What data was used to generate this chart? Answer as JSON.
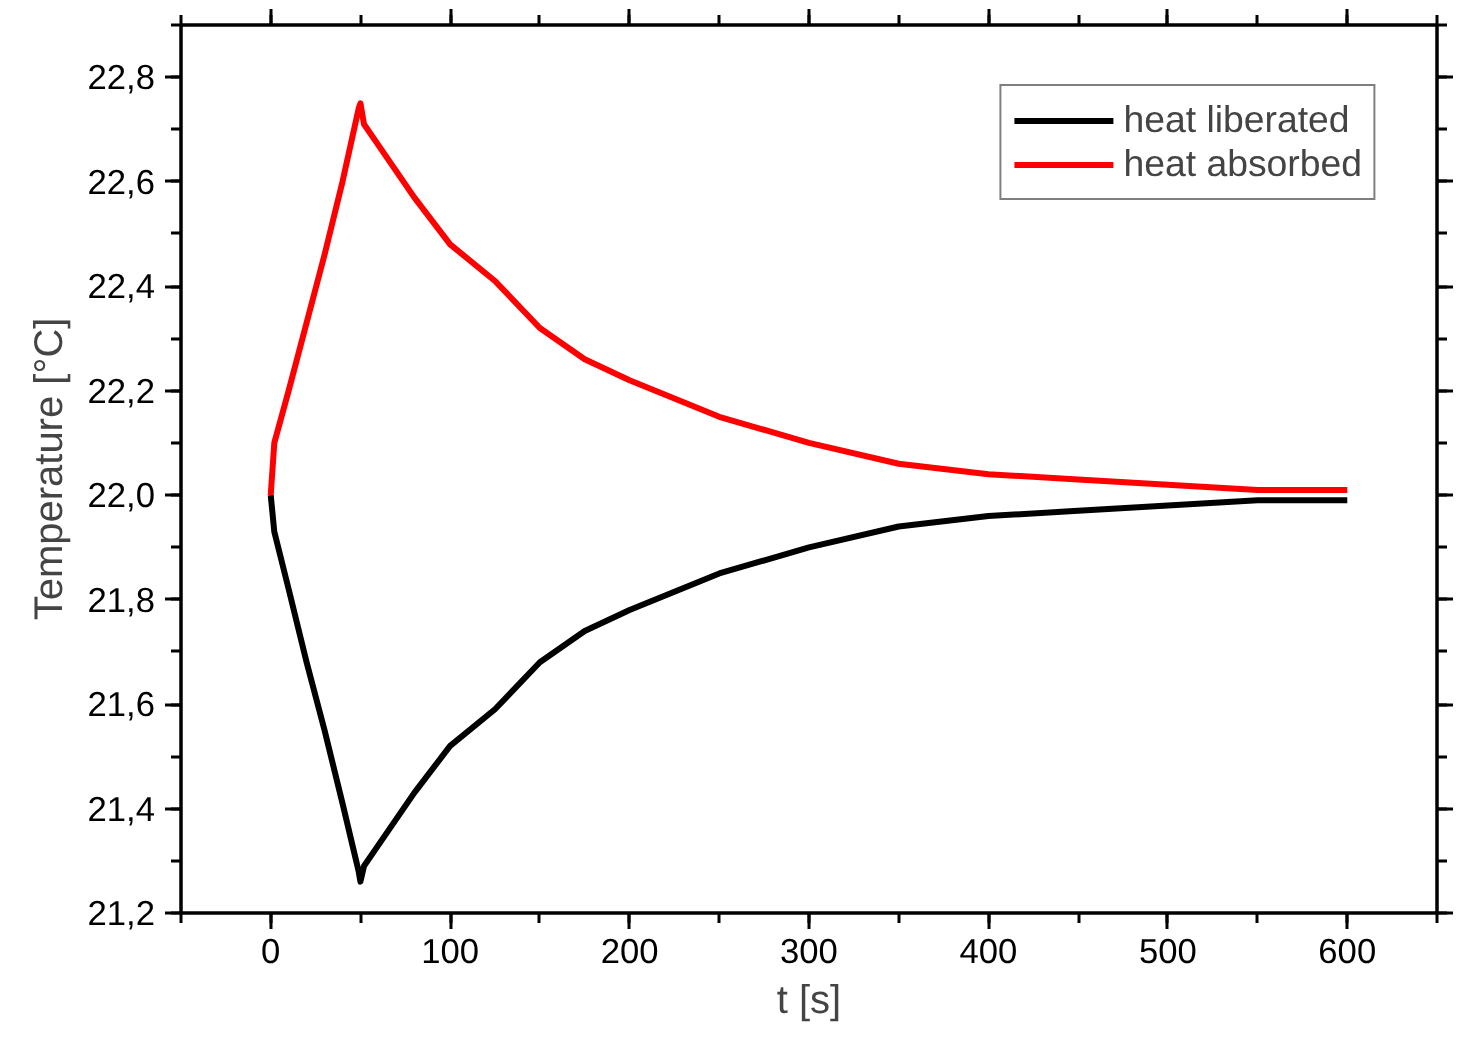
{
  "chart_data": {
    "type": "line",
    "xlabel": "t [s]",
    "ylabel": "Temperature [°C]",
    "xlim": [
      -50,
      650
    ],
    "xticks": [
      0,
      100,
      200,
      300,
      400,
      500,
      600
    ],
    "ylim": [
      21.2,
      22.9
    ],
    "yticks": [
      {
        "value": 21.2,
        "label": "21,2"
      },
      {
        "value": 21.4,
        "label": "21,4"
      },
      {
        "value": 21.6,
        "label": "21,6"
      },
      {
        "value": 21.8,
        "label": "21,8"
      },
      {
        "value": 22.0,
        "label": "22,0"
      },
      {
        "value": 22.2,
        "label": "22,2"
      },
      {
        "value": 22.4,
        "label": "22,4"
      },
      {
        "value": 22.6,
        "label": "22,6"
      },
      {
        "value": 22.8,
        "label": "22,8"
      }
    ],
    "grid": false,
    "legend": "top right",
    "marker": "none",
    "line_style": "solid",
    "x": [
      0,
      2,
      10,
      20,
      30,
      40,
      49,
      50,
      52,
      60,
      80,
      100,
      125,
      150,
      175,
      200,
      250,
      300,
      350,
      400,
      450,
      500,
      550,
      600
    ],
    "series": [
      {
        "name": "heat liberated",
        "color": "#000000",
        "values": [
          22.0,
          21.93,
          21.82,
          21.68,
          21.55,
          21.41,
          21.28,
          21.26,
          21.29,
          21.33,
          21.43,
          21.52,
          21.59,
          21.68,
          21.74,
          21.78,
          21.85,
          21.9,
          21.94,
          21.96,
          21.97,
          21.98,
          21.99,
          21.99
        ]
      },
      {
        "name": "heat absorbed",
        "color": "#ff0000",
        "values": [
          22.0,
          22.1,
          22.2,
          22.33,
          22.46,
          22.6,
          22.74,
          22.75,
          22.71,
          22.67,
          22.57,
          22.48,
          22.41,
          22.32,
          22.26,
          22.22,
          22.15,
          22.1,
          22.06,
          22.04,
          22.03,
          22.02,
          22.01,
          22.01
        ]
      }
    ]
  }
}
